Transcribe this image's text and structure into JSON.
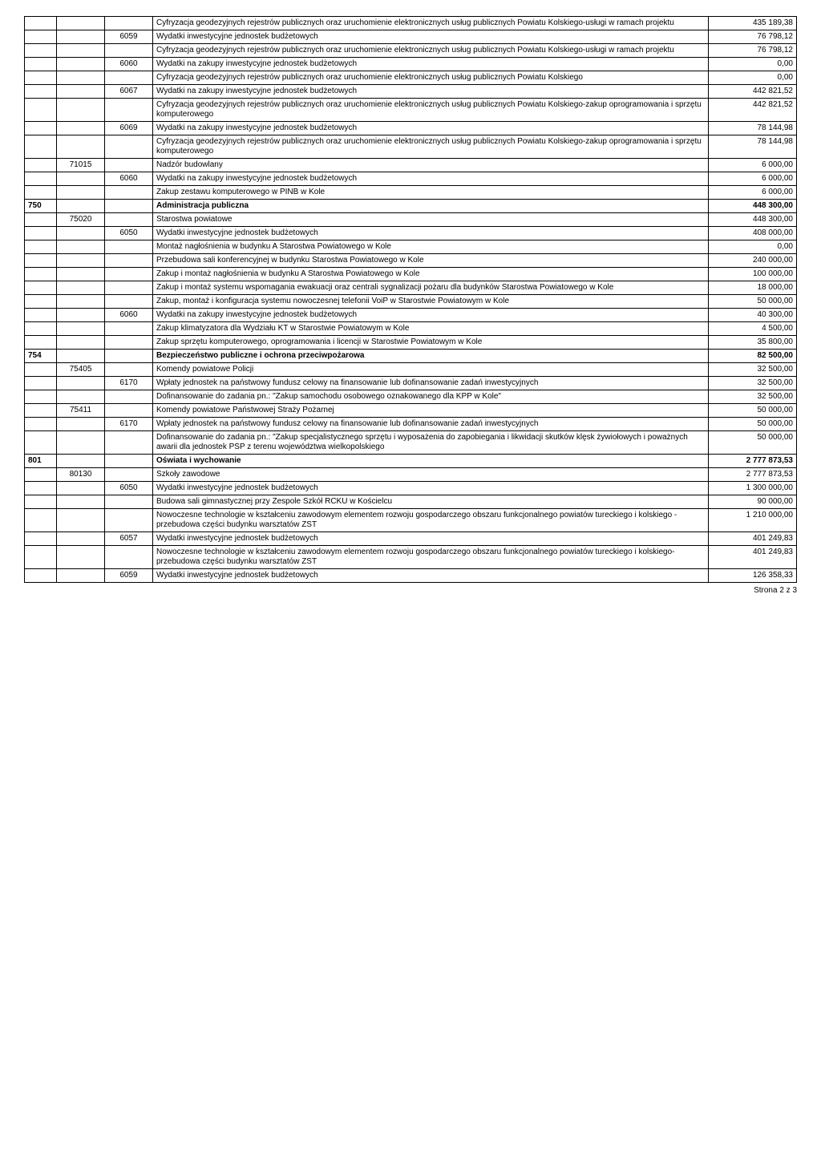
{
  "rows": [
    {
      "sec": "",
      "ch": "",
      "par": "",
      "desc": "Cyfryzacja geodezyjnych rejestrów publicznych oraz uruchomienie elektronicznych usług publicznych Powiatu Kolskiego-usługi w ramach projektu",
      "val": "435 189,38"
    },
    {
      "sec": "",
      "ch": "",
      "par": "6059",
      "desc": "Wydatki inwestycyjne jednostek budżetowych",
      "val": "76 798,12"
    },
    {
      "sec": "",
      "ch": "",
      "par": "",
      "desc": "Cyfryzacja geodezyjnych rejestrów publicznych oraz uruchomienie elektronicznych usług publicznych Powiatu Kolskiego-usługi w ramach projektu",
      "val": "76 798,12"
    },
    {
      "sec": "",
      "ch": "",
      "par": "6060",
      "desc": "Wydatki na zakupy inwestycyjne jednostek budżetowych",
      "val": "0,00"
    },
    {
      "sec": "",
      "ch": "",
      "par": "",
      "desc": "Cyfryzacja geodezyjnych rejestrów publicznych oraz uruchomienie elektronicznych usług publicznych Powiatu Kolskiego",
      "val": "0,00"
    },
    {
      "sec": "",
      "ch": "",
      "par": "6067",
      "desc": "Wydatki na zakupy inwestycyjne jednostek budżetowych",
      "val": "442 821,52"
    },
    {
      "sec": "",
      "ch": "",
      "par": "",
      "desc": "Cyfryzacja geodezyjnych rejestrów publicznych oraz uruchomienie elektronicznych usług publicznych Powiatu Kolskiego-zakup oprogramowania i sprzętu komputerowego",
      "val": "442 821,52"
    },
    {
      "sec": "",
      "ch": "",
      "par": "6069",
      "desc": "Wydatki na zakupy inwestycyjne jednostek budżetowych",
      "val": "78 144,98"
    },
    {
      "sec": "",
      "ch": "",
      "par": "",
      "desc": "Cyfryzacja geodezyjnych rejestrów publicznych oraz uruchomienie elektronicznych usług publicznych Powiatu Kolskiego-zakup oprogramowania i sprzętu komputerowego",
      "val": "78 144,98"
    },
    {
      "sec": "",
      "ch": "71015",
      "par": "",
      "desc": "Nadzór budowlany",
      "val": "6 000,00"
    },
    {
      "sec": "",
      "ch": "",
      "par": "6060",
      "desc": "Wydatki na zakupy inwestycyjne jednostek budżetowych",
      "val": "6 000,00"
    },
    {
      "sec": "",
      "ch": "",
      "par": "",
      "desc": "Zakup zestawu komputerowego w PINB w Kole",
      "val": "6 000,00"
    },
    {
      "sec": "750",
      "ch": "",
      "par": "",
      "desc": "Administracja publiczna",
      "val": "448 300,00",
      "bold": true
    },
    {
      "sec": "",
      "ch": "75020",
      "par": "",
      "desc": "Starostwa powiatowe",
      "val": "448 300,00"
    },
    {
      "sec": "",
      "ch": "",
      "par": "6050",
      "desc": "Wydatki inwestycyjne jednostek budżetowych",
      "val": "408 000,00"
    },
    {
      "sec": "",
      "ch": "",
      "par": "",
      "desc": "Montaż nagłośnienia w budynku A Starostwa Powiatowego w Kole",
      "val": "0,00"
    },
    {
      "sec": "",
      "ch": "",
      "par": "",
      "desc": "Przebudowa sali konferencyjnej w budynku Starostwa Powiatowego w Kole",
      "val": "240 000,00"
    },
    {
      "sec": "",
      "ch": "",
      "par": "",
      "desc": "Zakup i montaż nagłośnienia w budynku A Starostwa Powiatowego w Kole",
      "val": "100 000,00"
    },
    {
      "sec": "",
      "ch": "",
      "par": "",
      "desc": "Zakup i montaż systemu wspomagania ewakuacji oraz centrali sygnalizacji pożaru dla budynków Starostwa Powiatowego w Kole",
      "val": "18 000,00"
    },
    {
      "sec": "",
      "ch": "",
      "par": "",
      "desc": "Zakup, montaż i konfiguracja systemu nowoczesnej telefonii VoiP w Starostwie Powiatowym w Kole",
      "val": "50 000,00"
    },
    {
      "sec": "",
      "ch": "",
      "par": "6060",
      "desc": "Wydatki na zakupy inwestycyjne jednostek budżetowych",
      "val": "40 300,00"
    },
    {
      "sec": "",
      "ch": "",
      "par": "",
      "desc": "Zakup klimatyzatora dla Wydziału KT w Starostwie Powiatowym w Kole",
      "val": "4 500,00"
    },
    {
      "sec": "",
      "ch": "",
      "par": "",
      "desc": "Zakup sprzętu komputerowego, oprogramowania i licencji w Starostwie Powiatowym w Kole",
      "val": "35 800,00"
    },
    {
      "sec": "754",
      "ch": "",
      "par": "",
      "desc": "Bezpieczeństwo publiczne i ochrona przeciwpożarowa",
      "val": "82 500,00",
      "bold": true
    },
    {
      "sec": "",
      "ch": "75405",
      "par": "",
      "desc": "Komendy powiatowe Policji",
      "val": "32 500,00"
    },
    {
      "sec": "",
      "ch": "",
      "par": "6170",
      "desc": "Wpłaty jednostek na państwowy fundusz celowy na finansowanie lub dofinansowanie zadań inwestycyjnych",
      "val": "32 500,00"
    },
    {
      "sec": "",
      "ch": "",
      "par": "",
      "desc": "Dofinansowanie do zadania pn.: \"Zakup samochodu osobowego oznakowanego dla KPP w Kole\"",
      "val": "32 500,00"
    },
    {
      "sec": "",
      "ch": "75411",
      "par": "",
      "desc": "Komendy powiatowe Państwowej Straży Pożarnej",
      "val": "50 000,00"
    },
    {
      "sec": "",
      "ch": "",
      "par": "6170",
      "desc": "Wpłaty jednostek na państwowy fundusz celowy na finansowanie lub dofinansowanie zadań inwestycyjnych",
      "val": "50 000,00"
    },
    {
      "sec": "",
      "ch": "",
      "par": "",
      "desc": "Dofinansowanie do zadania pn.: \"Zakup specjalistycznego sprzętu i wyposażenia do zapobiegania i likwidacji skutków klęsk żywiołowych i poważnych awarii dla jednostek PSP z terenu województwa wielkopolskiego",
      "val": "50 000,00"
    },
    {
      "sec": "801",
      "ch": "",
      "par": "",
      "desc": "Oświata i wychowanie",
      "val": "2 777 873,53",
      "bold": true
    },
    {
      "sec": "",
      "ch": "80130",
      "par": "",
      "desc": "Szkoły zawodowe",
      "val": "2 777 873,53"
    },
    {
      "sec": "",
      "ch": "",
      "par": "6050",
      "desc": "Wydatki inwestycyjne jednostek budżetowych",
      "val": "1 300 000,00"
    },
    {
      "sec": "",
      "ch": "",
      "par": "",
      "desc": "Budowa sali gimnastycznej przy Zespole Szkół RCKU w Kościelcu",
      "val": "90 000,00"
    },
    {
      "sec": "",
      "ch": "",
      "par": "",
      "desc": "Nowoczesne technologie w kształceniu zawodowym elementem rozwoju gospodarczego obszaru funkcjonalnego powiatów tureckiego i kolskiego - przebudowa części budynku warsztatów ZST",
      "val": "1 210 000,00"
    },
    {
      "sec": "",
      "ch": "",
      "par": "6057",
      "desc": "Wydatki inwestycyjne jednostek budżetowych",
      "val": "401 249,83"
    },
    {
      "sec": "",
      "ch": "",
      "par": "",
      "desc": "Nowoczesne technologie w kształceniu zawodowym elementem rozwoju gospodarczego obszaru funkcjonalnego powiatów tureckiego i kolskiego- przebudowa części budynku warsztatów ZST",
      "val": "401 249,83"
    },
    {
      "sec": "",
      "ch": "",
      "par": "6059",
      "desc": "Wydatki inwestycyjne jednostek budżetowych",
      "val": "126 358,33"
    }
  ],
  "footer": "Strona 2 z 3"
}
